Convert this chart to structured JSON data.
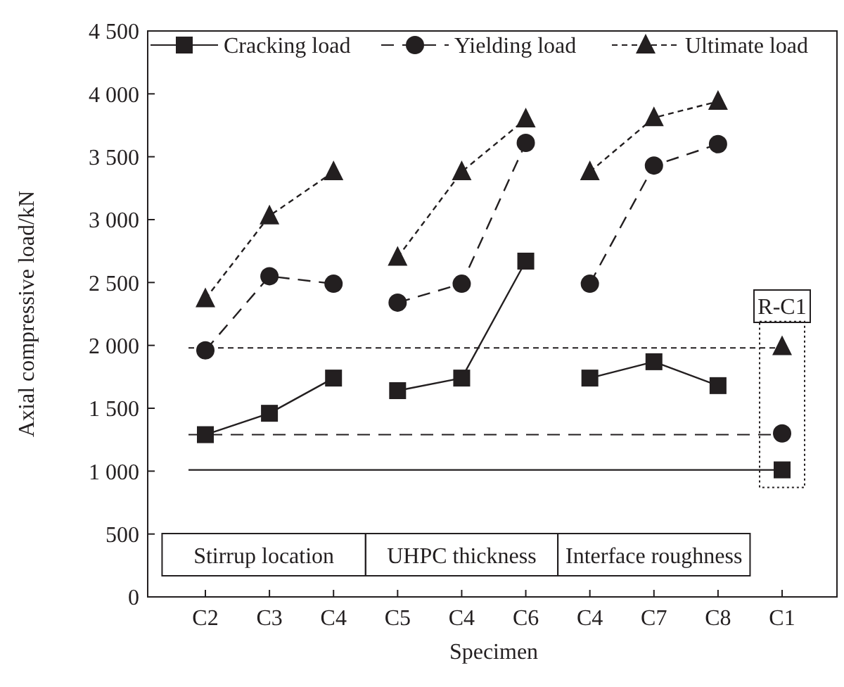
{
  "chart_data": {
    "type": "line",
    "xlabel": "Specimen",
    "ylabel": "Axial compressive load/kN",
    "categories": [
      "C2",
      "C3",
      "C4",
      "C5",
      "C4",
      "C6",
      "C4",
      "C7",
      "C8",
      "C1"
    ],
    "ylim": [
      0,
      4500
    ],
    "yticks": [
      0,
      500,
      {
        "value": 1000,
        "label": "1 000"
      },
      {
        "value": 1500,
        "label": "1 500"
      },
      {
        "value": 2000,
        "label": "2 000"
      },
      {
        "value": 2500,
        "label": "2 500"
      },
      {
        "value": 3000,
        "label": "3 000"
      },
      {
        "value": 3500,
        "label": "3 500"
      },
      {
        "value": 4000,
        "label": "4 000"
      },
      {
        "value": 4500,
        "label": "4 500"
      }
    ],
    "grid": false,
    "legend": "top",
    "series": [
      {
        "name": "Cracking load",
        "color": "#231f20",
        "marker": "square",
        "line_style": "solid",
        "values": [
          1290,
          1460,
          1740,
          null,
          null,
          null,
          null,
          null,
          null,
          1010
        ]
      },
      {
        "color": "#231f20",
        "marker": "square",
        "line_style": "solid",
        "values": [
          null,
          null,
          null,
          1640,
          1740,
          2670,
          null,
          null,
          null,
          null
        ]
      },
      {
        "color": "#231f20",
        "marker": "square",
        "line_style": "solid",
        "values": [
          null,
          null,
          null,
          null,
          null,
          null,
          1740,
          1870,
          1680,
          null
        ]
      },
      {
        "name": "Yielding load",
        "color": "#231f20",
        "marker": "circle",
        "line_style": "dashed",
        "values": [
          1960,
          2550,
          2490,
          null,
          null,
          null,
          null,
          null,
          null,
          1300
        ]
      },
      {
        "color": "#231f20",
        "marker": "circle",
        "line_style": "dashed",
        "values": [
          null,
          null,
          null,
          2340,
          2490,
          3610,
          null,
          null,
          null,
          null
        ]
      },
      {
        "color": "#231f20",
        "marker": "circle",
        "line_style": "dashed",
        "values": [
          null,
          null,
          null,
          null,
          null,
          null,
          2490,
          3430,
          3600,
          null
        ]
      },
      {
        "name": "Ultimate load",
        "color": "#231f20",
        "marker": "triangle",
        "line_style": "dotted",
        "values": [
          2370,
          3030,
          3380,
          null,
          null,
          null,
          null,
          null,
          null,
          1990
        ]
      },
      {
        "color": "#231f20",
        "marker": "triangle",
        "line_style": "dotted",
        "values": [
          null,
          null,
          null,
          2700,
          3380,
          3800,
          null,
          null,
          null,
          null
        ]
      },
      {
        "color": "#231f20",
        "marker": "triangle",
        "line_style": "dotted",
        "values": [
          null,
          null,
          null,
          null,
          null,
          null,
          3380,
          3810,
          3940,
          null
        ]
      }
    ],
    "ref_lines": [
      {
        "axis": "y",
        "value": 1010,
        "color": "#231f20",
        "line_style": "solid"
      },
      {
        "axis": "y",
        "value": 1290,
        "color": "#231f20",
        "line_style": "dashed"
      },
      {
        "axis": "y",
        "value": 1980,
        "color": "#231f20",
        "line_style": "dotted"
      }
    ],
    "annotations": [
      "Stirrup location",
      "UHPC thickness",
      "Interface roughness",
      "R-C1"
    ]
  }
}
